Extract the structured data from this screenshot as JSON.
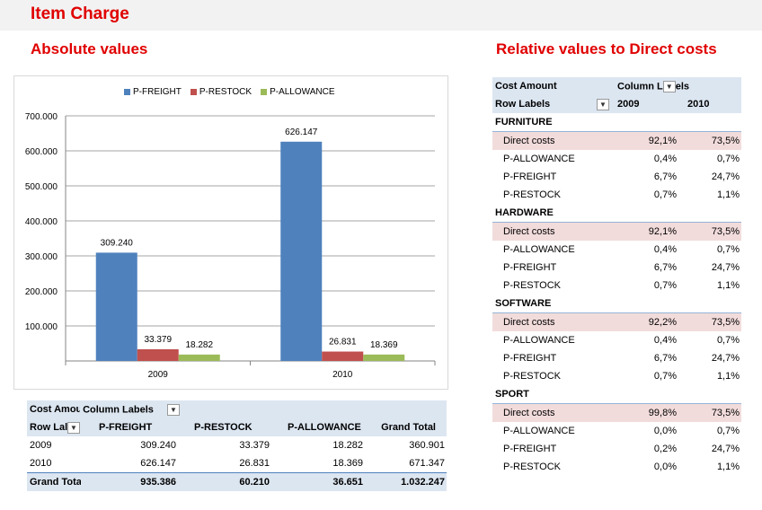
{
  "header": {
    "title": "Item Charge"
  },
  "sections": {
    "absolute_title": "Absolute values",
    "relative_title": "Relative values to Direct costs"
  },
  "colors": {
    "accent_red": "#e00000",
    "freight": "#4f81bd",
    "restock": "#c0504d",
    "allowance": "#9bbb59",
    "pivot_header": "#dce6f1",
    "direct_costs_row": "#f2dcdb"
  },
  "chart_data": {
    "type": "bar",
    "categories": [
      "2009",
      "2010"
    ],
    "series": [
      {
        "name": "P-FREIGHT",
        "values": [
          309240,
          626147
        ],
        "labels": [
          "309.240",
          "626.147"
        ]
      },
      {
        "name": "P-RESTOCK",
        "values": [
          33379,
          26831
        ],
        "labels": [
          "33.379",
          "26.831"
        ]
      },
      {
        "name": "P-ALLOWANCE",
        "values": [
          18282,
          18369
        ],
        "labels": [
          "18.282",
          "18.369"
        ]
      }
    ],
    "y_ticks": [
      "700.000",
      "600.000",
      "500.000",
      "400.000",
      "300.000",
      "200.000",
      "100.000"
    ],
    "ylim": [
      0,
      700000
    ],
    "gridlines": true,
    "legend_position": "top"
  },
  "bottom_pivot": {
    "corner_label": "Cost Amour",
    "column_labels": "Column Labels",
    "row_labels": "Row Lal",
    "columns": [
      "P-FREIGHT",
      "P-RESTOCK",
      "P-ALLOWANCE",
      "Grand Total"
    ],
    "rows": [
      {
        "label": "2009",
        "values": [
          "309.240",
          "33.379",
          "18.282",
          "360.901"
        ]
      },
      {
        "label": "2010",
        "values": [
          "626.147",
          "26.831",
          "18.369",
          "671.347"
        ]
      }
    ],
    "total": {
      "label": "Grand Tota",
      "values": [
        "935.386",
        "60.210",
        "36.651",
        "1.032.247"
      ]
    }
  },
  "relative_pivot": {
    "corner_label": "Cost Amount",
    "column_labels": "Column L",
    "column_labels_tail": "els",
    "row_labels": "Row Labels",
    "years": [
      "2009",
      "2010"
    ],
    "categories": [
      {
        "name": "FURNITURE",
        "rows": [
          {
            "label": "Direct costs",
            "v2009": "92,1%",
            "v2010": "73,5%"
          },
          {
            "label": "P-ALLOWANCE",
            "v2009": "0,4%",
            "v2010": "0,7%"
          },
          {
            "label": "P-FREIGHT",
            "v2009": "6,7%",
            "v2010": "24,7%"
          },
          {
            "label": "P-RESTOCK",
            "v2009": "0,7%",
            "v2010": "1,1%"
          }
        ]
      },
      {
        "name": "HARDWARE",
        "rows": [
          {
            "label": "Direct costs",
            "v2009": "92,1%",
            "v2010": "73,5%"
          },
          {
            "label": "P-ALLOWANCE",
            "v2009": "0,4%",
            "v2010": "0,7%"
          },
          {
            "label": "P-FREIGHT",
            "v2009": "6,7%",
            "v2010": "24,7%"
          },
          {
            "label": "P-RESTOCK",
            "v2009": "0,7%",
            "v2010": "1,1%"
          }
        ]
      },
      {
        "name": "SOFTWARE",
        "rows": [
          {
            "label": "Direct costs",
            "v2009": "92,2%",
            "v2010": "73,5%"
          },
          {
            "label": "P-ALLOWANCE",
            "v2009": "0,4%",
            "v2010": "0,7%"
          },
          {
            "label": "P-FREIGHT",
            "v2009": "6,7%",
            "v2010": "24,7%"
          },
          {
            "label": "P-RESTOCK",
            "v2009": "0,7%",
            "v2010": "1,1%"
          }
        ]
      },
      {
        "name": "SPORT",
        "rows": [
          {
            "label": "Direct costs",
            "v2009": "99,8%",
            "v2010": "73,5%"
          },
          {
            "label": "P-ALLOWANCE",
            "v2009": "0,0%",
            "v2010": "0,7%"
          },
          {
            "label": "P-FREIGHT",
            "v2009": "0,2%",
            "v2010": "24,7%"
          },
          {
            "label": "P-RESTOCK",
            "v2009": "0,0%",
            "v2010": "1,1%"
          }
        ]
      }
    ]
  }
}
